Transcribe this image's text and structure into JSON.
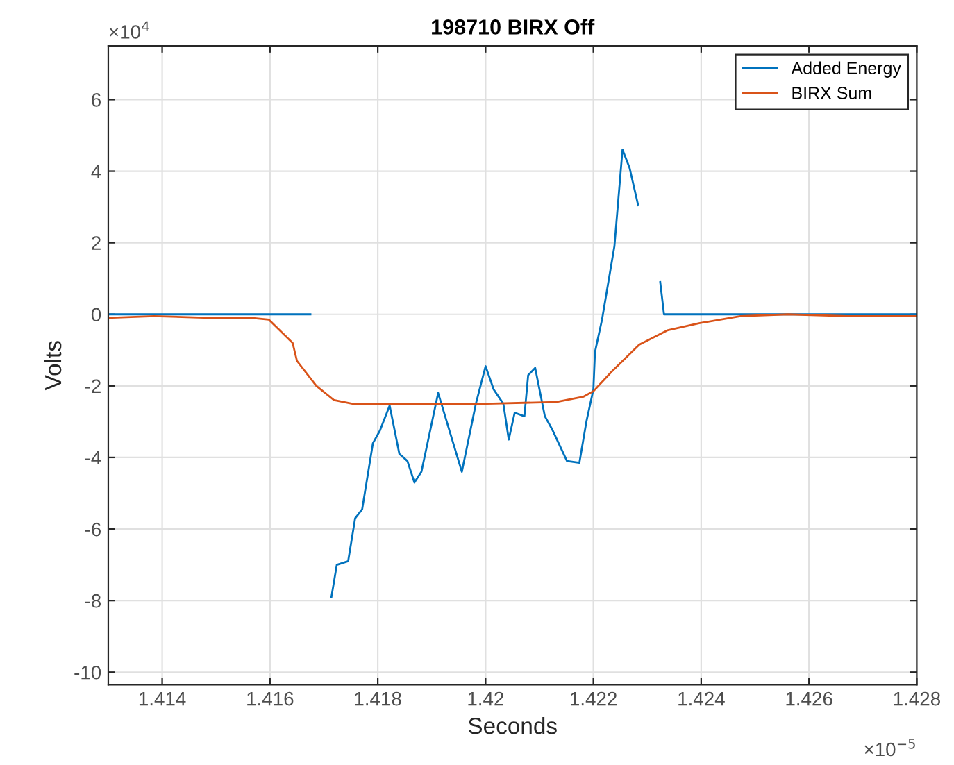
{
  "chart_data": {
    "type": "line",
    "title": "198710 BIRX Off",
    "xlabel": "Seconds",
    "ylabel": "Volts",
    "annotations": [
      "×10$^{4}$",
      "×10$^{−5}$"
    ],
    "xlim": [
      1.413,
      1.428
    ],
    "xticks": [
      1.414,
      1.416,
      1.418,
      1.42,
      1.422,
      1.424,
      1.426,
      1.428
    ],
    "ylim": [
      -10.35,
      7.5
    ],
    "yticks": [
      -10,
      -8,
      -6,
      -4,
      -2,
      0,
      2,
      4,
      6
    ],
    "grid": true,
    "legend": "top right",
    "line_style": "solid",
    "marker": "none",
    "series": [
      {
        "name": "Added Energy",
        "color": "#0072bd",
        "x": [
          1.413,
          1.41675,
          1.4168,
          1.41684,
          1.41687,
          1.41711,
          1.41714,
          1.41724,
          1.41745,
          1.41758,
          1.41771,
          1.41791,
          1.41804,
          1.41822,
          1.4184,
          1.41855,
          1.41868,
          1.41881,
          1.41912,
          1.41933,
          1.41956,
          1.41982,
          1.42,
          1.42015,
          1.42033,
          1.42043,
          1.42054,
          1.42072,
          1.42079,
          1.42092,
          1.4211,
          1.42123,
          1.42151,
          1.42174,
          1.42187,
          1.422,
          1.42203,
          1.42216,
          1.42239,
          1.42254,
          1.42267,
          1.42283,
          1.42285,
          1.42308,
          1.42311,
          1.42321,
          1.42324,
          1.42331,
          1.428
        ],
        "values": [
          0,
          0,
          null,
          null,
          null,
          null,
          -7.9,
          -7.0,
          -6.9,
          -5.7,
          -5.45,
          -3.6,
          -3.25,
          -2.55,
          -3.9,
          -4.1,
          -4.7,
          -4.4,
          -2.2,
          -3.25,
          -4.4,
          -2.5,
          -1.45,
          -2.1,
          -2.5,
          -3.5,
          -2.75,
          -2.85,
          -1.7,
          -1.5,
          -2.85,
          -3.2,
          -4.1,
          -4.15,
          -3.0,
          -2.1,
          -1.05,
          -0.15,
          1.9,
          4.6,
          4.1,
          3.05,
          null,
          null,
          null,
          null,
          0.9,
          0,
          0
        ]
      },
      {
        "name": "BIRX Sum",
        "color": "#d95319",
        "x": [
          1.413,
          1.41385,
          1.41487,
          1.41565,
          1.41598,
          1.41642,
          1.4165,
          1.41686,
          1.41719,
          1.41753,
          1.41873,
          1.42002,
          1.42131,
          1.42182,
          1.422,
          1.42234,
          1.42285,
          1.42337,
          1.42396,
          1.42473,
          1.42561,
          1.42671,
          1.428
        ],
        "values": [
          -0.1,
          -0.05,
          -0.1,
          -0.1,
          -0.15,
          -0.8,
          -1.3,
          -2.0,
          -2.4,
          -2.5,
          -2.5,
          -2.5,
          -2.45,
          -2.3,
          -2.15,
          -1.6,
          -0.85,
          -0.45,
          -0.25,
          -0.05,
          0,
          -0.05,
          -0.05
        ]
      }
    ]
  }
}
